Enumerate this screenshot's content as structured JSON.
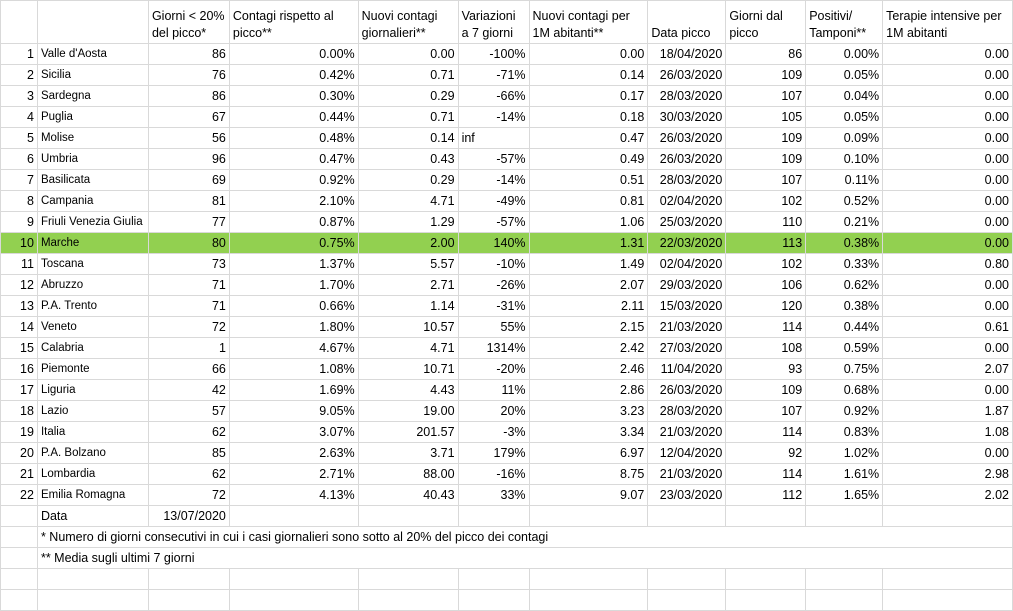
{
  "headers": [
    "Giorni < 20% del picco*",
    "Contagi rispetto al picco**",
    "Nuovi contagi giornalieri**",
    "Variazioni a 7 giorni",
    "Nuovi contagi per 1M abitanti**",
    "Data picco",
    "Giorni dal picco",
    "Positivi/ Tamponi**",
    "Terapie intensive per 1M abitanti"
  ],
  "rows": [
    {
      "n": "1",
      "name": "Valle d'Aosta",
      "c": [
        "86",
        "0.00%",
        "0.00",
        "-100%",
        "0.00",
        "18/04/2020",
        "86",
        "0.00%",
        "0.00"
      ]
    },
    {
      "n": "2",
      "name": "Sicilia",
      "c": [
        "76",
        "0.42%",
        "0.71",
        "-71%",
        "0.14",
        "26/03/2020",
        "109",
        "0.05%",
        "0.00"
      ]
    },
    {
      "n": "3",
      "name": "Sardegna",
      "c": [
        "86",
        "0.30%",
        "0.29",
        "-66%",
        "0.17",
        "28/03/2020",
        "107",
        "0.04%",
        "0.00"
      ]
    },
    {
      "n": "4",
      "name": "Puglia",
      "c": [
        "67",
        "0.44%",
        "0.71",
        "-14%",
        "0.18",
        "30/03/2020",
        "105",
        "0.05%",
        "0.00"
      ]
    },
    {
      "n": "5",
      "name": "Molise",
      "c": [
        "56",
        "0.48%",
        "0.14",
        "inf",
        "0.47",
        "26/03/2020",
        "109",
        "0.09%",
        "0.00"
      ]
    },
    {
      "n": "6",
      "name": "Umbria",
      "c": [
        "96",
        "0.47%",
        "0.43",
        "-57%",
        "0.49",
        "26/03/2020",
        "109",
        "0.10%",
        "0.00"
      ]
    },
    {
      "n": "7",
      "name": "Basilicata",
      "c": [
        "69",
        "0.92%",
        "0.29",
        "-14%",
        "0.51",
        "28/03/2020",
        "107",
        "0.11%",
        "0.00"
      ]
    },
    {
      "n": "8",
      "name": "Campania",
      "c": [
        "81",
        "2.10%",
        "4.71",
        "-49%",
        "0.81",
        "02/04/2020",
        "102",
        "0.52%",
        "0.00"
      ]
    },
    {
      "n": "9",
      "name": "Friuli Venezia Giulia",
      "c": [
        "77",
        "0.87%",
        "1.29",
        "-57%",
        "1.06",
        "25/03/2020",
        "110",
        "0.21%",
        "0.00"
      ]
    },
    {
      "n": "10",
      "name": "Marche",
      "c": [
        "80",
        "0.75%",
        "2.00",
        "140%",
        "1.31",
        "22/03/2020",
        "113",
        "0.38%",
        "0.00"
      ]
    },
    {
      "n": "11",
      "name": "Toscana",
      "c": [
        "73",
        "1.37%",
        "5.57",
        "-10%",
        "1.49",
        "02/04/2020",
        "102",
        "0.33%",
        "0.80"
      ]
    },
    {
      "n": "12",
      "name": "Abruzzo",
      "c": [
        "71",
        "1.70%",
        "2.71",
        "-26%",
        "2.07",
        "29/03/2020",
        "106",
        "0.62%",
        "0.00"
      ]
    },
    {
      "n": "13",
      "name": "P.A. Trento",
      "c": [
        "71",
        "0.66%",
        "1.14",
        "-31%",
        "2.11",
        "15/03/2020",
        "120",
        "0.38%",
        "0.00"
      ]
    },
    {
      "n": "14",
      "name": "Veneto",
      "c": [
        "72",
        "1.80%",
        "10.57",
        "55%",
        "2.15",
        "21/03/2020",
        "114",
        "0.44%",
        "0.61"
      ]
    },
    {
      "n": "15",
      "name": "Calabria",
      "c": [
        "1",
        "4.67%",
        "4.71",
        "1314%",
        "2.42",
        "27/03/2020",
        "108",
        "0.59%",
        "0.00"
      ]
    },
    {
      "n": "16",
      "name": "Piemonte",
      "c": [
        "66",
        "1.08%",
        "10.71",
        "-20%",
        "2.46",
        "11/04/2020",
        "93",
        "0.75%",
        "2.07"
      ]
    },
    {
      "n": "17",
      "name": "Liguria",
      "c": [
        "42",
        "1.69%",
        "4.43",
        "11%",
        "2.86",
        "26/03/2020",
        "109",
        "0.68%",
        "0.00"
      ]
    },
    {
      "n": "18",
      "name": "Lazio",
      "c": [
        "57",
        "9.05%",
        "19.00",
        "20%",
        "3.23",
        "28/03/2020",
        "107",
        "0.92%",
        "1.87"
      ]
    },
    {
      "n": "19",
      "name": "Italia",
      "c": [
        "62",
        "3.07%",
        "201.57",
        "-3%",
        "3.34",
        "21/03/2020",
        "114",
        "0.83%",
        "1.08"
      ]
    },
    {
      "n": "20",
      "name": "P.A. Bolzano",
      "c": [
        "85",
        "2.63%",
        "3.71",
        "179%",
        "6.97",
        "12/04/2020",
        "92",
        "1.02%",
        "0.00"
      ]
    },
    {
      "n": "21",
      "name": "Lombardia",
      "c": [
        "62",
        "2.71%",
        "88.00",
        "-16%",
        "8.75",
        "21/03/2020",
        "114",
        "1.61%",
        "2.98"
      ]
    },
    {
      "n": "22",
      "name": "Emilia Romagna",
      "c": [
        "72",
        "4.13%",
        "40.43",
        "33%",
        "9.07",
        "23/03/2020",
        "112",
        "1.65%",
        "2.02"
      ]
    }
  ],
  "data_label": "Data",
  "data_value": "13/07/2020",
  "note1": "* Numero di giorni consecutivi in cui i casi giornalieri sono sotto al 20% del picco dei contagi",
  "note2": "** Media sugli ultimi 7 giorni",
  "highlight_color": "#92d050"
}
